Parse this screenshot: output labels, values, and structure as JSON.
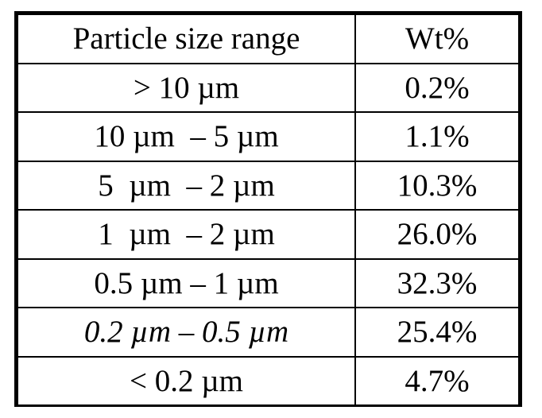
{
  "table": {
    "headers": [
      "Particle size range",
      "Wt%"
    ],
    "rows": [
      {
        "range": "> 10 µm",
        "wt": "0.2%"
      },
      {
        "range": "10 µm  – 5 µm",
        "wt": "1.1%"
      },
      {
        "range": "5  µm  – 2 µm",
        "wt": "10.3%"
      },
      {
        "range": "1  µm  – 2 µm",
        "wt": "26.0%"
      },
      {
        "range": "0.5 µm – 1 µm",
        "wt": "32.3%"
      },
      {
        "range": "0.2 µm – 0.5 µm",
        "wt": "25.4%"
      },
      {
        "range": "< 0.2 µm",
        "wt": "4.7%"
      }
    ]
  }
}
